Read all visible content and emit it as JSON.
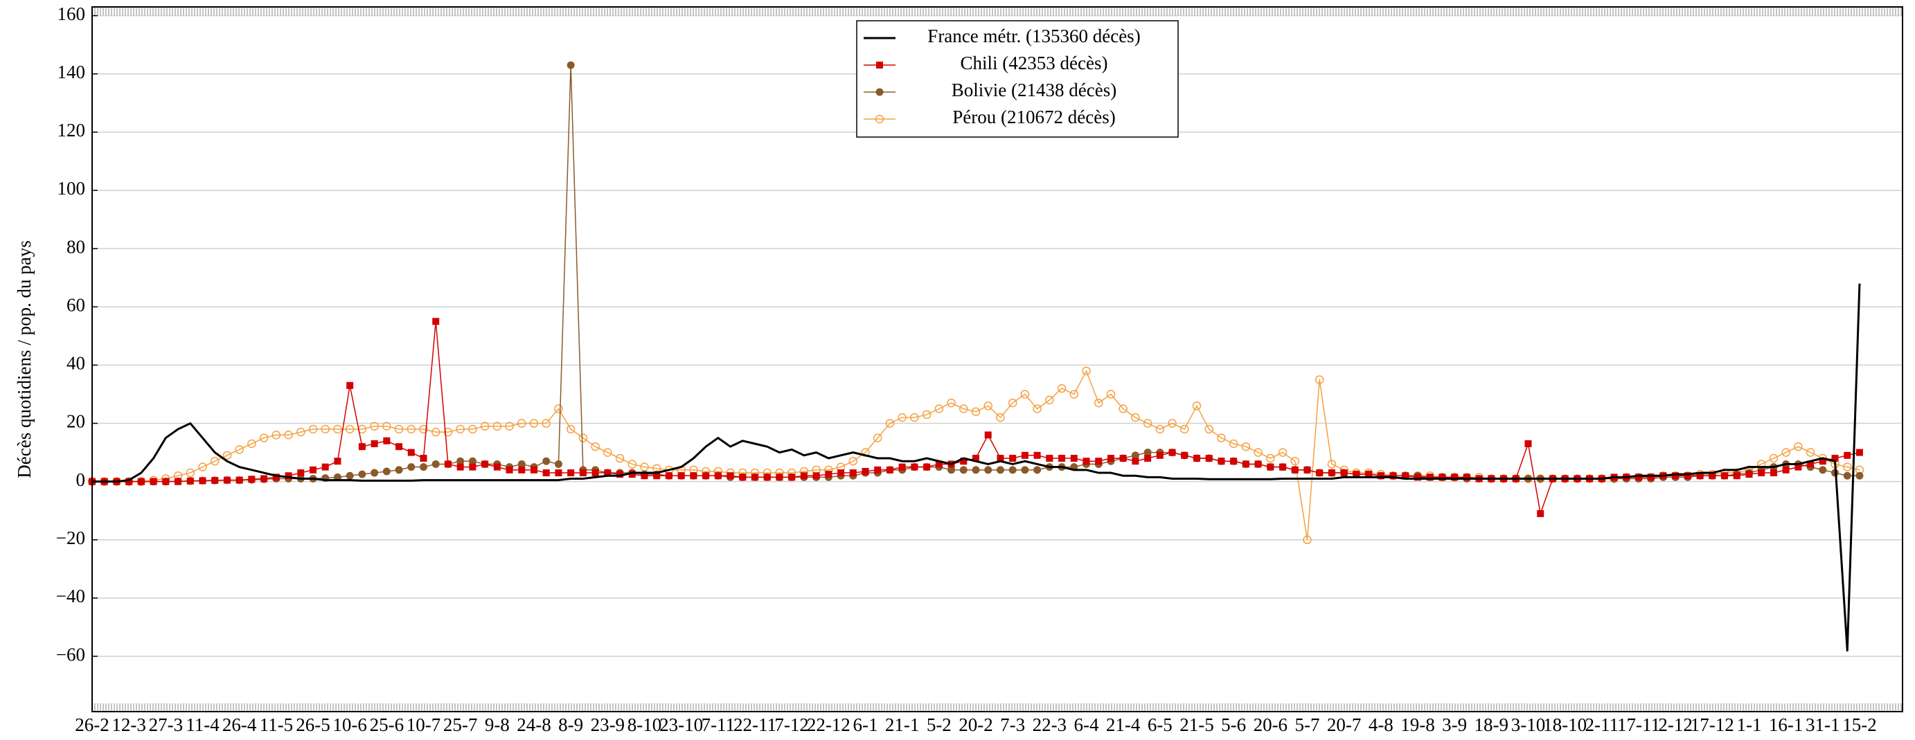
{
  "chart_data": {
    "type": "line",
    "y_label": "Décès quotidiens / pop. du pays",
    "categories": [
      "26-2",
      null,
      null,
      "12-3",
      null,
      null,
      "27-3",
      null,
      null,
      "11-4",
      null,
      null,
      "26-4",
      null,
      null,
      "11-5",
      null,
      null,
      "26-5",
      null,
      null,
      "10-6",
      null,
      null,
      "25-6",
      null,
      null,
      "10-7",
      null,
      null,
      "25-7",
      null,
      null,
      "9-8",
      null,
      null,
      "24-8",
      null,
      null,
      "8-9",
      null,
      null,
      "23-9",
      null,
      null,
      "8-10",
      null,
      null,
      "23-10",
      null,
      null,
      "7-11",
      null,
      null,
      "22-11",
      null,
      null,
      "7-12",
      null,
      null,
      "22-12",
      null,
      null,
      "6-1",
      null,
      null,
      "21-1",
      null,
      null,
      "5-2",
      null,
      null,
      "20-2",
      null,
      null,
      "7-3",
      null,
      null,
      "22-3",
      null,
      null,
      "6-4",
      null,
      null,
      "21-4",
      null,
      null,
      "6-5",
      null,
      null,
      "21-5",
      null,
      null,
      "5-6",
      null,
      null,
      "20-6",
      null,
      null,
      "5-7",
      null,
      null,
      "20-7",
      null,
      null,
      "4-8",
      null,
      null,
      "19-8",
      null,
      null,
      "3-9",
      null,
      null,
      "18-9",
      null,
      null,
      "3-10",
      null,
      null,
      "18-10",
      null,
      null,
      "2-11",
      null,
      null,
      "17-11",
      null,
      null,
      "2-12",
      null,
      null,
      "17-12",
      null,
      null,
      "1-1",
      null,
      null,
      "16-1",
      null,
      null,
      "31-1",
      null,
      null,
      "15-2"
    ],
    "series": [
      {
        "name": "France métr. (135360 décès)",
        "color": "#000000",
        "marker": null,
        "values": [
          0,
          0,
          0,
          0.5,
          3,
          8,
          15,
          18,
          20,
          15,
          10,
          7,
          5,
          4,
          3,
          2,
          1.5,
          1,
          1,
          0.5,
          0.5,
          0.5,
          0.3,
          0.3,
          0.3,
          0.3,
          0.3,
          0.5,
          0.5,
          0.5,
          0.5,
          0.5,
          0.5,
          0.5,
          0.5,
          0.5,
          0.5,
          0.5,
          0.5,
          1,
          1,
          1.5,
          2,
          2,
          3,
          3,
          3,
          4,
          5,
          8,
          12,
          15,
          12,
          14,
          13,
          12,
          10,
          11,
          9,
          10,
          8,
          9,
          10,
          9,
          8,
          8,
          7,
          7,
          8,
          7,
          6,
          8,
          7,
          6,
          7,
          6,
          7,
          6,
          5,
          5,
          4,
          4,
          3,
          3,
          2,
          2,
          1.5,
          1.5,
          1,
          1,
          1,
          0.8,
          0.8,
          0.8,
          0.8,
          0.8,
          0.8,
          1,
          1,
          1,
          1,
          1,
          1.5,
          1.5,
          1.5,
          1.5,
          1.5,
          1,
          1,
          1,
          1,
          1,
          1,
          1,
          1,
          1,
          1,
          1,
          1,
          1,
          1,
          1,
          1,
          1,
          1.5,
          1.5,
          2,
          2,
          2,
          2.5,
          2.5,
          3,
          3,
          4,
          4,
          5,
          5,
          5,
          6,
          6,
          7,
          8,
          7,
          -58,
          68
        ]
      },
      {
        "name": "Chili (42353 décès)",
        "color": "#d40000",
        "marker": "square",
        "values": [
          0,
          0,
          0,
          0,
          0,
          0,
          0,
          0,
          0.2,
          0.3,
          0.4,
          0.5,
          0.5,
          0.8,
          1,
          1.5,
          2,
          3,
          4,
          5,
          7,
          33,
          12,
          13,
          14,
          12,
          10,
          8,
          55,
          6,
          5,
          5,
          6,
          5,
          4,
          4,
          4,
          3,
          3,
          3,
          3,
          3,
          3,
          2.5,
          2.5,
          2,
          2,
          2,
          2,
          2,
          2,
          2,
          2,
          1.5,
          1.5,
          1.5,
          1.5,
          1.5,
          2,
          2,
          2.5,
          3,
          3,
          3.5,
          4,
          4,
          5,
          5,
          5,
          6,
          6,
          7,
          8,
          16,
          8,
          8,
          9,
          9,
          8,
          8,
          8,
          7,
          7,
          8,
          8,
          7,
          8,
          9,
          10,
          9,
          8,
          8,
          7,
          7,
          6,
          6,
          5,
          5,
          4,
          4,
          3,
          3,
          3,
          2.5,
          2.5,
          2,
          2,
          2,
          1.5,
          1.5,
          1.5,
          1.5,
          1.5,
          1,
          1,
          1,
          1,
          13,
          -11,
          1,
          1,
          1,
          1,
          1,
          1.5,
          1.5,
          1.5,
          1.5,
          2,
          2,
          2,
          2,
          2,
          2,
          2,
          2.5,
          3,
          3,
          4,
          5,
          6,
          7,
          8,
          9,
          10
        ]
      },
      {
        "name": "Bolivie (21438 décès)",
        "color": "#8b5a2b",
        "marker": "circle",
        "values": [
          0,
          0,
          0,
          0,
          0,
          0,
          0,
          0.1,
          0.2,
          0.3,
          0.4,
          0.5,
          0.5,
          0.6,
          0.8,
          1,
          1,
          1,
          1,
          1.2,
          1.5,
          2,
          2.5,
          3,
          3.5,
          4,
          5,
          5,
          6,
          6,
          7,
          7,
          6,
          6,
          5,
          6,
          5,
          7,
          6,
          143,
          4,
          4,
          3,
          3,
          3,
          2.5,
          2.5,
          2,
          2,
          2,
          2,
          2,
          1.5,
          1.5,
          1.5,
          1.5,
          1.5,
          1.5,
          1.5,
          1.5,
          1.5,
          2,
          2,
          3,
          3,
          4,
          4,
          5,
          5,
          5,
          4,
          4,
          4,
          4,
          4,
          4,
          4,
          4,
          5,
          5,
          5,
          6,
          6,
          7,
          8,
          9,
          10,
          10,
          10,
          9,
          8,
          8,
          7,
          7,
          6,
          6,
          5,
          5,
          4,
          4,
          3,
          3,
          3,
          2.5,
          2.5,
          2,
          2,
          2,
          2,
          1.5,
          1.5,
          1.5,
          1,
          1,
          1,
          1,
          1,
          1,
          1,
          1,
          1,
          1,
          1,
          1,
          1,
          1,
          1,
          1,
          1.5,
          1.5,
          1.5,
          2,
          2,
          2,
          2.5,
          3,
          4,
          5,
          6,
          6,
          5,
          4,
          3,
          2,
          2
        ]
      },
      {
        "name": "Pérou (210672 décès)",
        "color": "#f5a040",
        "marker": "open-circle",
        "values": [
          0,
          0,
          0,
          0,
          0,
          0.5,
          1,
          2,
          3,
          5,
          7,
          9,
          11,
          13,
          15,
          16,
          16,
          17,
          18,
          18,
          18,
          18,
          18,
          19,
          19,
          18,
          18,
          18,
          17,
          17,
          18,
          18,
          19,
          19,
          19,
          20,
          20,
          20,
          25,
          18,
          15,
          12,
          10,
          8,
          6,
          5,
          4.5,
          4,
          4,
          4,
          3.5,
          3.5,
          3,
          3,
          3,
          3,
          3,
          3,
          3.5,
          4,
          4,
          5,
          7,
          10,
          15,
          20,
          22,
          22,
          23,
          25,
          27,
          25,
          24,
          26,
          22,
          27,
          30,
          25,
          28,
          32,
          30,
          38,
          27,
          30,
          25,
          22,
          20,
          18,
          20,
          18,
          26,
          18,
          15,
          13,
          12,
          10,
          8,
          10,
          7,
          -20,
          35,
          6,
          4,
          3,
          3,
          2.5,
          2,
          2,
          2,
          2,
          1.5,
          1.5,
          1.5,
          1.5,
          1,
          1,
          1,
          1,
          1,
          1,
          1,
          1,
          1,
          1,
          1,
          1.5,
          1.5,
          1.5,
          2,
          2,
          2,
          2.5,
          2.5,
          3,
          3,
          4,
          6,
          8,
          10,
          12,
          10,
          8,
          6,
          5,
          4
        ]
      }
    ],
    "ylim": [
      -79,
      163
    ],
    "yticks": [
      {
        "value": -60,
        "label": "−60"
      },
      {
        "value": -40,
        "label": "−40"
      },
      {
        "value": -20,
        "label": "−20"
      },
      0,
      20,
      40,
      60,
      80,
      100,
      120,
      140,
      160
    ],
    "grid": true,
    "legend": "top"
  }
}
